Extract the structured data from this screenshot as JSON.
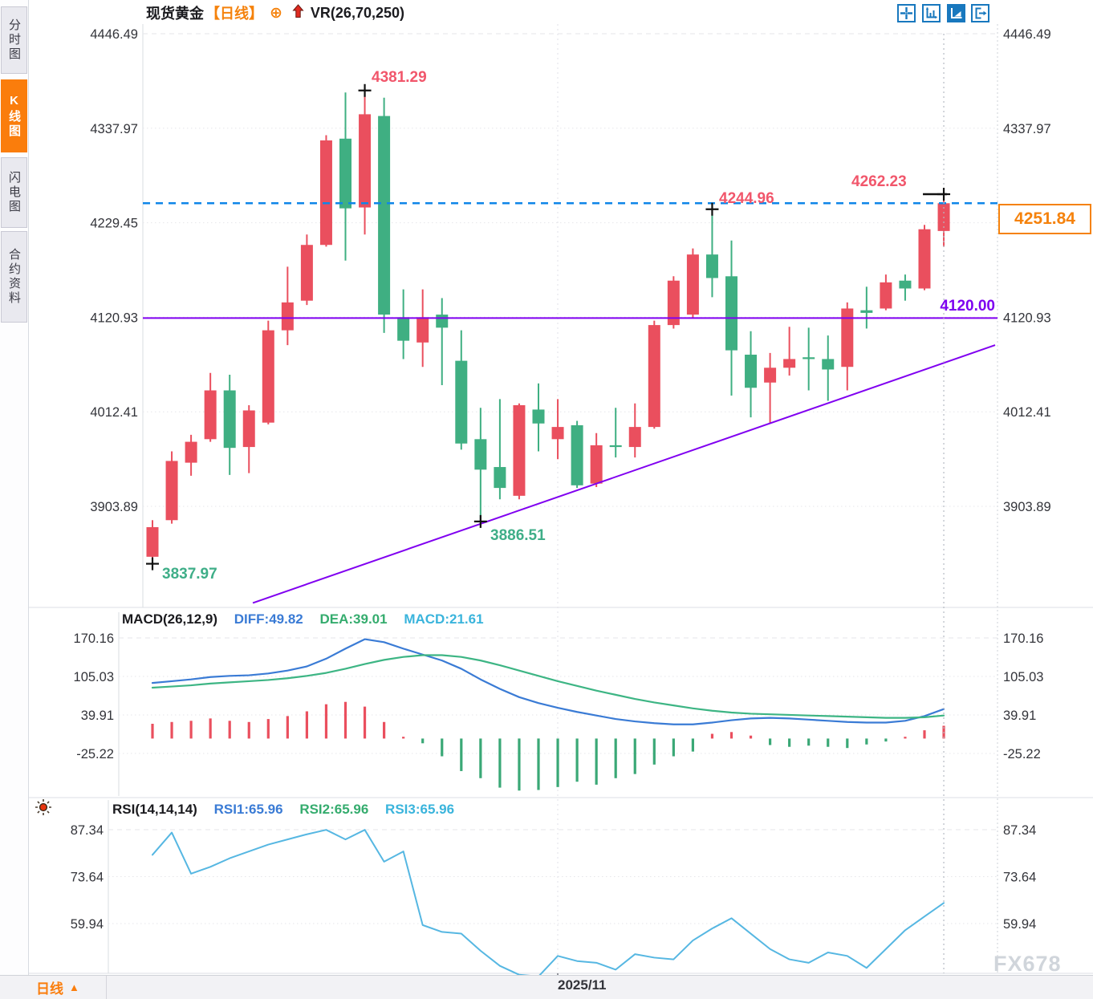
{
  "header": {
    "symbol": "现货黄金",
    "period_tag": "【日线】",
    "plus_icon": "⊕",
    "vr_label": "VR(26,70,250)"
  },
  "sidebar": {
    "tabs": [
      {
        "label": "分时图",
        "active": false
      },
      {
        "label": "K线图",
        "active": true
      },
      {
        "label": "闪电图",
        "active": false
      },
      {
        "label": "合约资料",
        "active": false
      }
    ]
  },
  "toolbar": {
    "icons": [
      "crosshair-icon",
      "axes-icon",
      "play-chart-icon",
      "exit-fullscreen-icon"
    ]
  },
  "annotations": {
    "high_peak": "4381.29",
    "high_mid": "4244.96",
    "high_last": "4262.23",
    "low_start": "3837.97",
    "low_mid": "3886.51",
    "hline_label": "4120.00",
    "last_price": "4251.84"
  },
  "macd_panel": {
    "title": "MACD(26,12,9)",
    "diff_label": "DIFF:49.82",
    "dea_label": "DEA:39.01",
    "macd_label": "MACD:21.61"
  },
  "rsi_panel": {
    "title": "RSI(14,14,14)",
    "rsi1_label": "RSI1:65.96",
    "rsi2_label": "RSI2:65.96",
    "rsi3_label": "RSI3:65.96"
  },
  "footer": {
    "period": "日线",
    "dropdown": "▲",
    "date_label": "2025/11",
    "watermark": "FX678"
  },
  "colors": {
    "up": "#ea4f5e",
    "down": "#3faf82",
    "accent_orange": "#f5820c",
    "sidebar_active": "#fa7d0c",
    "purple_line": "#8000f0",
    "blue_dashed": "#0f86e8",
    "diff_line": "#3a7bd5",
    "dea_line": "#3db584",
    "rsi_line": "#56b7e2",
    "axis_text": "#33343a",
    "annotation_red": "#f1566b",
    "annotation_green": "#3fae88"
  },
  "chart_data": {
    "type": "candlestick-with-indicators",
    "title": "现货黄金 日线 (spot gold daily)",
    "price_axis_ticks": [
      4446.49,
      4337.97,
      4229.45,
      4120.93,
      4012.41,
      3903.89
    ],
    "macd_axis_ticks": [
      170.16,
      105.03,
      39.91,
      -25.22
    ],
    "rsi_axis_ticks": [
      87.34,
      73.64,
      59.94
    ],
    "x_axis_label": "2025/11",
    "hline_price": 4120.0,
    "current_price": 4251.84,
    "trendline": {
      "from": {
        "xi": 5.2,
        "price": 3793
      },
      "to": {
        "xi": 43.66,
        "price": 4089
      }
    },
    "marked_points": [
      {
        "index": 0,
        "type": "low",
        "price": 3837.97
      },
      {
        "index": 11,
        "type": "high",
        "price": 4381.29
      },
      {
        "index": 17,
        "type": "low",
        "price": 3886.51
      },
      {
        "index": 29,
        "type": "high",
        "price": 4244.96
      },
      {
        "index": 41,
        "type": "high",
        "price": 4262.23,
        "marker": "hbar"
      }
    ],
    "candles_ohlc": [
      [
        3846,
        3888,
        3838,
        3880
      ],
      [
        3888,
        3967,
        3884,
        3956
      ],
      [
        3954,
        3986,
        3939,
        3978
      ],
      [
        3981,
        4057,
        3978,
        4037
      ],
      [
        4037,
        4055,
        3940,
        3971
      ],
      [
        3972,
        4020,
        3942,
        4014
      ],
      [
        4000,
        4117,
        3998,
        4106
      ],
      [
        4106,
        4179,
        4089,
        4138
      ],
      [
        4140,
        4216,
        4135,
        4204
      ],
      [
        4204,
        4330,
        4202,
        4324
      ],
      [
        4326,
        4379,
        4186,
        4246
      ],
      [
        4247,
        4381.29,
        4216,
        4354
      ],
      [
        4352,
        4373,
        4103,
        4124
      ],
      [
        4121,
        4153,
        4073,
        4094
      ],
      [
        4092,
        4153,
        4064,
        4121
      ],
      [
        4124,
        4143,
        4043,
        4109
      ],
      [
        4071,
        4106,
        3969,
        3976
      ],
      [
        3981,
        4017,
        3886.51,
        3946
      ],
      [
        3949,
        4027,
        3912,
        3925
      ],
      [
        3916,
        4022,
        3912,
        4020
      ],
      [
        4015,
        4045,
        3967,
        3999
      ],
      [
        3981,
        4027,
        3958,
        3995
      ],
      [
        3997,
        4002,
        3925,
        3928
      ],
      [
        3930,
        3988,
        3926,
        3974
      ],
      [
        3974,
        4017,
        3960,
        3972
      ],
      [
        3972,
        4022,
        3960,
        3995
      ],
      [
        3995,
        4117,
        3993,
        4112
      ],
      [
        4112,
        4168,
        4108,
        4163
      ],
      [
        4124,
        4200,
        4120,
        4193
      ],
      [
        4193,
        4244.96,
        4144,
        4166
      ],
      [
        4168,
        4209,
        4031,
        4083
      ],
      [
        4078,
        4105,
        4006,
        4040
      ],
      [
        4046,
        4080,
        3999,
        4063
      ],
      [
        4063,
        4110,
        4054,
        4073
      ],
      [
        4075,
        4109,
        4037,
        4073
      ],
      [
        4073,
        4100,
        4025,
        4061
      ],
      [
        4064,
        4138,
        4037,
        4131
      ],
      [
        4129,
        4156,
        4108,
        4126
      ],
      [
        4131,
        4170,
        4129,
        4161
      ],
      [
        4163,
        4170,
        4140,
        4154
      ],
      [
        4154,
        4227,
        4152,
        4222
      ],
      [
        4220,
        4262.23,
        4202,
        4251.84
      ]
    ],
    "macd": {
      "diff": [
        94,
        97,
        100,
        104,
        106,
        107,
        110,
        115,
        122,
        135,
        152,
        168,
        163,
        152,
        142,
        132,
        118,
        100,
        84,
        70,
        60,
        52,
        45,
        39,
        33,
        29,
        26,
        24,
        24,
        27,
        31,
        34,
        35,
        34,
        32,
        30,
        28,
        27,
        27,
        30,
        38,
        49.82
      ],
      "dea": [
        86,
        88,
        90,
        93,
        95,
        97,
        99,
        102,
        106,
        111,
        118,
        126,
        133,
        138,
        141,
        141,
        138,
        132,
        124,
        115,
        106,
        97,
        89,
        81,
        74,
        67,
        61,
        56,
        51,
        47,
        44,
        42,
        41,
        40,
        39,
        38,
        37,
        36,
        35,
        35,
        36,
        39.01
      ],
      "hist": [
        25,
        28,
        30,
        34,
        30,
        28,
        33,
        38,
        46,
        58,
        62,
        54,
        28,
        3,
        -8,
        -30,
        -55,
        -67,
        -83,
        -88,
        -87,
        -82,
        -73,
        -78,
        -67,
        -60,
        -44,
        -30,
        -22,
        8,
        11,
        5,
        -11,
        -14,
        -12,
        -14,
        -16,
        -10,
        -5,
        3,
        14,
        21.61
      ]
    },
    "rsi": [
      80,
      86.5,
      74.5,
      76.5,
      79,
      81,
      83,
      84.5,
      86,
      87.3,
      84.5,
      87.3,
      78,
      81,
      59.5,
      57.5,
      57,
      52,
      47.6,
      45,
      44.5,
      50.5,
      49,
      48.5,
      46.5,
      51,
      50,
      49.5,
      55,
      58.5,
      61.5,
      57,
      52.5,
      49.5,
      48.5,
      51.5,
      50.5,
      47,
      52.5,
      58,
      62,
      65.96
    ]
  }
}
